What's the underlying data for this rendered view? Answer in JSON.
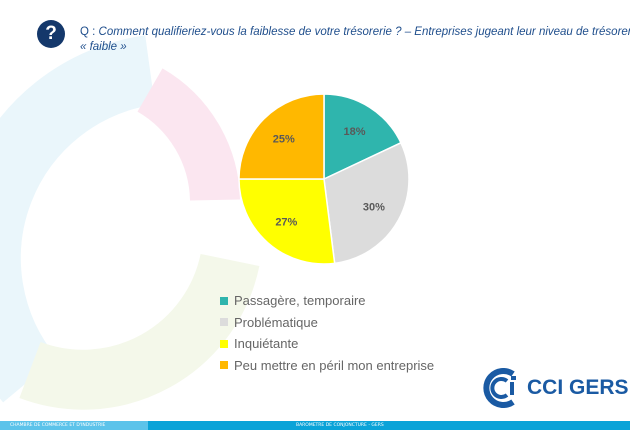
{
  "header": {
    "icon": "question-icon",
    "icon_text": "?",
    "prefix": "Q : ",
    "question_line1": "Comment qualifieriez-vous la faiblesse de votre trésorerie ? – Entreprises  jugeant leur niveau de trésorerie",
    "question_line2": "« faible »"
  },
  "chart_data": {
    "type": "pie",
    "categories": [
      "Passagère, temporaire",
      "Problématique",
      "Inquiétante",
      "Peu mettre en péril mon entreprise"
    ],
    "values": [
      18,
      30,
      27,
      25
    ],
    "labels": [
      "18%",
      "30%",
      "27%",
      "25%"
    ],
    "colors": [
      "#2fb5ad",
      "#dcdcdc",
      "#ffff00",
      "#ffb800"
    ],
    "start": "top",
    "direction": "clockwise",
    "legend_placement": "bottom"
  },
  "logo": {
    "text": "CCI GERS",
    "color": "#1a5aa3"
  },
  "footer": {
    "left": "CHAMBRE DE COMMERCE ET D'INDUSTRIE",
    "center": "BAROMETRE DE CONJONCTURE - GERS"
  }
}
